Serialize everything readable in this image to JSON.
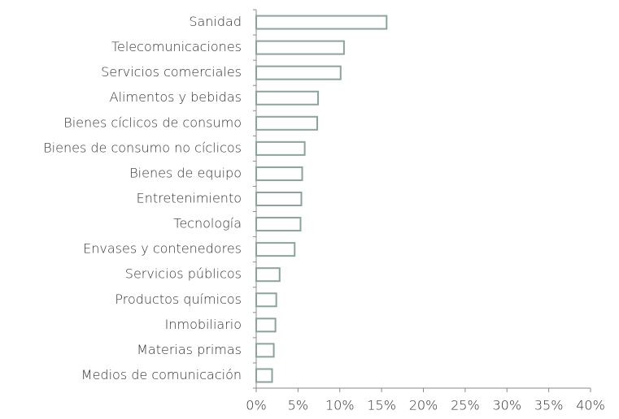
{
  "chart_data": {
    "type": "barh",
    "categories": [
      "Sanidad",
      "Telecomunicaciones",
      "Servicios comerciales",
      "Alimentos y bebidas",
      "Bienes cíclicos de consumo",
      "Bienes de consumo no cíclicos",
      "Bienes de equipo",
      "Entretenimiento",
      "Tecnología",
      "Envases y contenedores",
      "Servicios públicos",
      "Productos químicos",
      "Inmobiliario",
      "Materias primas",
      "Medios de comunicación"
    ],
    "values": [
      15.6,
      10.5,
      10.1,
      7.4,
      7.3,
      5.8,
      5.5,
      5.4,
      5.3,
      4.6,
      2.8,
      2.4,
      2.3,
      2.1,
      1.9
    ],
    "color": "#8aa39b",
    "xlim": [
      0,
      40
    ],
    "xticks": [
      {
        "value": 0,
        "label": "0%"
      },
      {
        "value": 5,
        "label": "5%"
      },
      {
        "value": 10,
        "label": "10%"
      },
      {
        "value": 15,
        "label": "15%"
      },
      {
        "value": 20,
        "label": "20%"
      },
      {
        "value": 25,
        "label": "25%"
      },
      {
        "value": 30,
        "label": "30%"
      },
      {
        "value": 35,
        "label": "35%"
      },
      {
        "value": 40,
        "label": "40%"
      }
    ]
  }
}
